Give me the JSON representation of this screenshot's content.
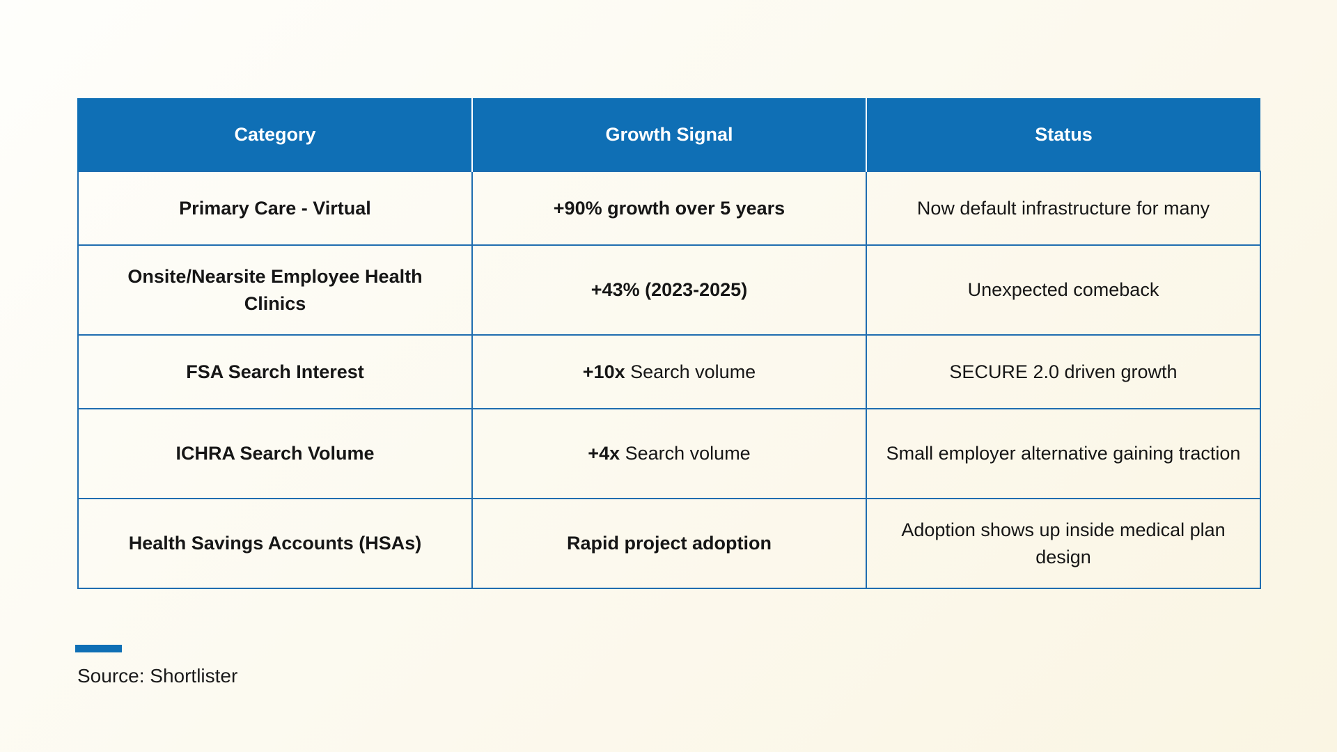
{
  "table": {
    "headers": [
      "Category",
      "Growth Signal",
      "Status"
    ],
    "rows": [
      {
        "category": "Primary Care - Virtual",
        "growth_strong": "+90% growth over 5 years",
        "growth_rest": "",
        "status": "Now default infrastructure for many"
      },
      {
        "category": "Onsite/Nearsite Employee Health Clinics",
        "growth_strong": "+43% (2023-2025)",
        "growth_rest": "",
        "status": "Unexpected comeback"
      },
      {
        "category": "FSA Search Interest",
        "growth_strong": "+10x",
        "growth_rest": " Search volume",
        "status": "SECURE 2.0 driven growth"
      },
      {
        "category": "ICHRA Search Volume",
        "growth_strong": "+4x",
        "growth_rest": " Search volume",
        "status": "Small employer alternative gaining traction"
      },
      {
        "category": "Health Savings Accounts (HSAs)",
        "growth_strong": "Rapid project adoption",
        "growth_rest": "",
        "status": "Adoption shows up inside medical plan design"
      }
    ]
  },
  "source": {
    "text": "Source: Shortlister"
  },
  "colors": {
    "header_bg": "#0f6fb5",
    "growth_text": "#17a0a6",
    "border": "#1f6db0",
    "accent_bar": "#0f6fb5"
  }
}
